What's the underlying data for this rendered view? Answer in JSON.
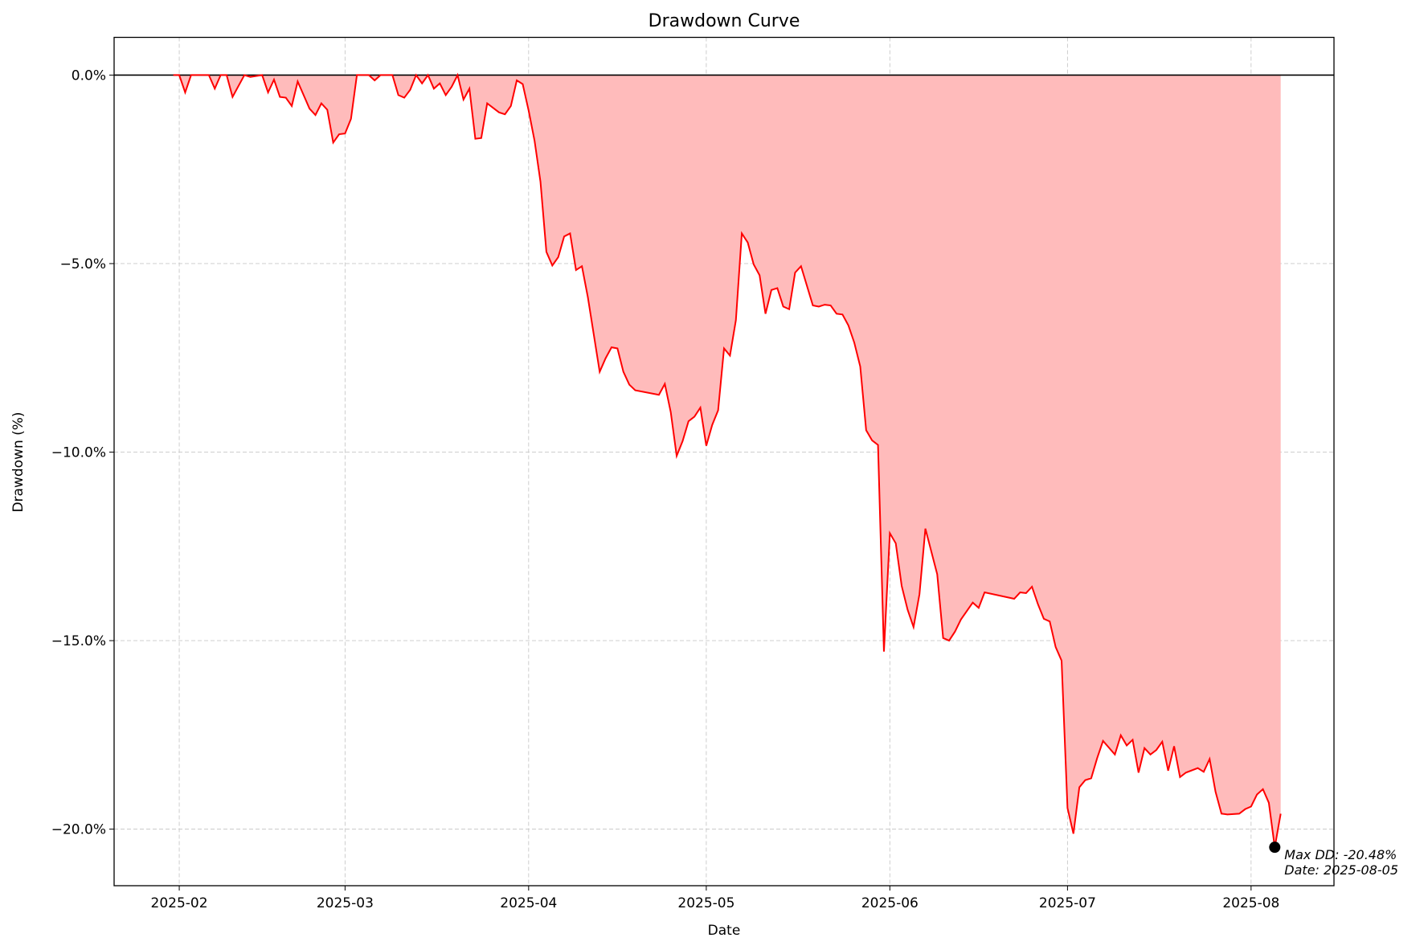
{
  "chart_data": {
    "type": "area-line",
    "title": "Drawdown Curve",
    "xlabel": "Date",
    "ylabel": "Drawdown (%)",
    "x": [
      "2025-01-31",
      "2025-02-01",
      "2025-02-02",
      "2025-02-03",
      "2025-02-06",
      "2025-02-07",
      "2025-02-08",
      "2025-02-09",
      "2025-02-10",
      "2025-02-12",
      "2025-02-13",
      "2025-02-15",
      "2025-02-16",
      "2025-02-17",
      "2025-02-18",
      "2025-02-19",
      "2025-02-20",
      "2025-02-21",
      "2025-02-23",
      "2025-02-24",
      "2025-02-25",
      "2025-02-26",
      "2025-02-27",
      "2025-02-28",
      "2025-03-01",
      "2025-03-02",
      "2025-03-03",
      "2025-03-05",
      "2025-03-06",
      "2025-03-07",
      "2025-03-09",
      "2025-03-10",
      "2025-03-11",
      "2025-03-12",
      "2025-03-13",
      "2025-03-14",
      "2025-03-15",
      "2025-03-16",
      "2025-03-17",
      "2025-03-18",
      "2025-03-19",
      "2025-03-20",
      "2025-03-21",
      "2025-03-22",
      "2025-03-23",
      "2025-03-24",
      "2025-03-25",
      "2025-03-27",
      "2025-03-28",
      "2025-03-29",
      "2025-03-30",
      "2025-03-31",
      "2025-04-01",
      "2025-04-02",
      "2025-04-03",
      "2025-04-04",
      "2025-04-05",
      "2025-04-06",
      "2025-04-07",
      "2025-04-08",
      "2025-04-09",
      "2025-04-10",
      "2025-04-11",
      "2025-04-13",
      "2025-04-14",
      "2025-04-15",
      "2025-04-16",
      "2025-04-17",
      "2025-04-18",
      "2025-04-19",
      "2025-04-23",
      "2025-04-24",
      "2025-04-25",
      "2025-04-26",
      "2025-04-27",
      "2025-04-28",
      "2025-04-29",
      "2025-04-30",
      "2025-05-01",
      "2025-05-02",
      "2025-05-03",
      "2025-05-04",
      "2025-05-05",
      "2025-05-06",
      "2025-05-07",
      "2025-05-08",
      "2025-05-09",
      "2025-05-10",
      "2025-05-11",
      "2025-05-12",
      "2025-05-13",
      "2025-05-14",
      "2025-05-15",
      "2025-05-16",
      "2025-05-17",
      "2025-05-19",
      "2025-05-20",
      "2025-05-21",
      "2025-05-22",
      "2025-05-23",
      "2025-05-24",
      "2025-05-25",
      "2025-05-26",
      "2025-05-27",
      "2025-05-28",
      "2025-05-29",
      "2025-05-30",
      "2025-05-31",
      "2025-06-01",
      "2025-06-02",
      "2025-06-03",
      "2025-06-04",
      "2025-06-05",
      "2025-06-06",
      "2025-06-07",
      "2025-06-09",
      "2025-06-10",
      "2025-06-11",
      "2025-06-12",
      "2025-06-13",
      "2025-06-15",
      "2025-06-16",
      "2025-06-17",
      "2025-06-22",
      "2025-06-23",
      "2025-06-24",
      "2025-06-25",
      "2025-06-26",
      "2025-06-27",
      "2025-06-28",
      "2025-06-29",
      "2025-06-30",
      "2025-07-01",
      "2025-07-02",
      "2025-07-03",
      "2025-07-04",
      "2025-07-05",
      "2025-07-06",
      "2025-07-07",
      "2025-07-09",
      "2025-07-10",
      "2025-07-11",
      "2025-07-12",
      "2025-07-13",
      "2025-07-14",
      "2025-07-15",
      "2025-07-16",
      "2025-07-17",
      "2025-07-18",
      "2025-07-19",
      "2025-07-20",
      "2025-07-21",
      "2025-07-23",
      "2025-07-24",
      "2025-07-25",
      "2025-07-26",
      "2025-07-27",
      "2025-07-28",
      "2025-07-30",
      "2025-07-31",
      "2025-08-01",
      "2025-08-02",
      "2025-08-03",
      "2025-08-04",
      "2025-08-05",
      "2025-08-06"
    ],
    "values": [
      0,
      0,
      -0.46,
      0,
      0,
      -0.36,
      0,
      0,
      -0.58,
      0,
      -0.05,
      0,
      -0.46,
      -0.12,
      -0.58,
      -0.6,
      -0.82,
      -0.17,
      -0.89,
      -1.06,
      -0.75,
      -0.92,
      -1.79,
      -1.57,
      -1.55,
      -1.16,
      0,
      0,
      -0.14,
      0,
      0,
      -0.53,
      -0.6,
      -0.39,
      0,
      -0.22,
      0,
      -0.36,
      -0.22,
      -0.53,
      -0.31,
      0,
      -0.65,
      -0.36,
      -1.69,
      -1.67,
      -0.75,
      -0.99,
      -1.04,
      -0.82,
      -0.14,
      -0.24,
      -0.94,
      -1.74,
      -2.83,
      -4.69,
      -5.05,
      -4.83,
      -4.28,
      -4.2,
      -5.17,
      -5.07,
      -5.89,
      -7.87,
      -7.51,
      -7.22,
      -7.25,
      -7.87,
      -8.21,
      -8.36,
      -8.48,
      -8.19,
      -8.94,
      -10.1,
      -9.71,
      -9.18,
      -9.06,
      -8.82,
      -9.83,
      -9.28,
      -8.89,
      -7.25,
      -7.44,
      -6.5,
      -4.2,
      -4.44,
      -5.02,
      -5.31,
      -6.33,
      -5.7,
      -5.65,
      -6.14,
      -6.21,
      -5.24,
      -5.07,
      -6.11,
      -6.14,
      -6.09,
      -6.11,
      -6.33,
      -6.35,
      -6.64,
      -7.1,
      -7.73,
      -9.42,
      -9.69,
      -9.81,
      -15.29,
      -12.15,
      -12.42,
      -13.55,
      -14.18,
      -14.64,
      -13.77,
      -12.03,
      -13.24,
      -14.93,
      -15.0,
      -14.76,
      -14.44,
      -13.99,
      -14.13,
      -13.72,
      -13.89,
      -13.72,
      -13.74,
      -13.57,
      -14.03,
      -14.42,
      -14.49,
      -15.17,
      -15.53,
      -19.44,
      -20.12,
      -18.89,
      -18.7,
      -18.65,
      -18.12,
      -17.66,
      -18.02,
      -17.51,
      -17.78,
      -17.63,
      -18.5,
      -17.85,
      -18.02,
      -17.9,
      -17.68,
      -18.45,
      -17.8,
      -18.62,
      -18.5,
      -18.38,
      -18.48,
      -18.14,
      -19.01,
      -19.59,
      -19.61,
      -19.59,
      -19.47,
      -19.4,
      -19.08,
      -18.94,
      -19.3,
      -20.48,
      -19.59
    ],
    "color": "#ff0000",
    "fill_color": "#ffbbbb",
    "reference_line": 0,
    "xlim": [
      "2025-01-21",
      "2025-08-15"
    ],
    "ylim": [
      -21.5,
      1.0
    ],
    "xticks": [
      {
        "value": "2025-02-01",
        "label": "2025-02"
      },
      {
        "value": "2025-03-01",
        "label": "2025-03"
      },
      {
        "value": "2025-04-01",
        "label": "2025-04"
      },
      {
        "value": "2025-05-01",
        "label": "2025-05"
      },
      {
        "value": "2025-06-01",
        "label": "2025-06"
      },
      {
        "value": "2025-07-01",
        "label": "2025-07"
      },
      {
        "value": "2025-08-01",
        "label": "2025-08"
      }
    ],
    "yticks": [
      {
        "value": 0,
        "label": "0.0%"
      },
      {
        "value": -5,
        "label": "−5.0%"
      },
      {
        "value": -10,
        "label": "−10.0%"
      },
      {
        "value": -15,
        "label": "−15.0%"
      },
      {
        "value": -20,
        "label": "−20.0%"
      }
    ],
    "grid": true,
    "annotation": {
      "x": "2025-08-05",
      "y": -20.48,
      "lines": [
        "Max DD: -20.48%",
        "Date: 2025-08-05"
      ]
    }
  }
}
